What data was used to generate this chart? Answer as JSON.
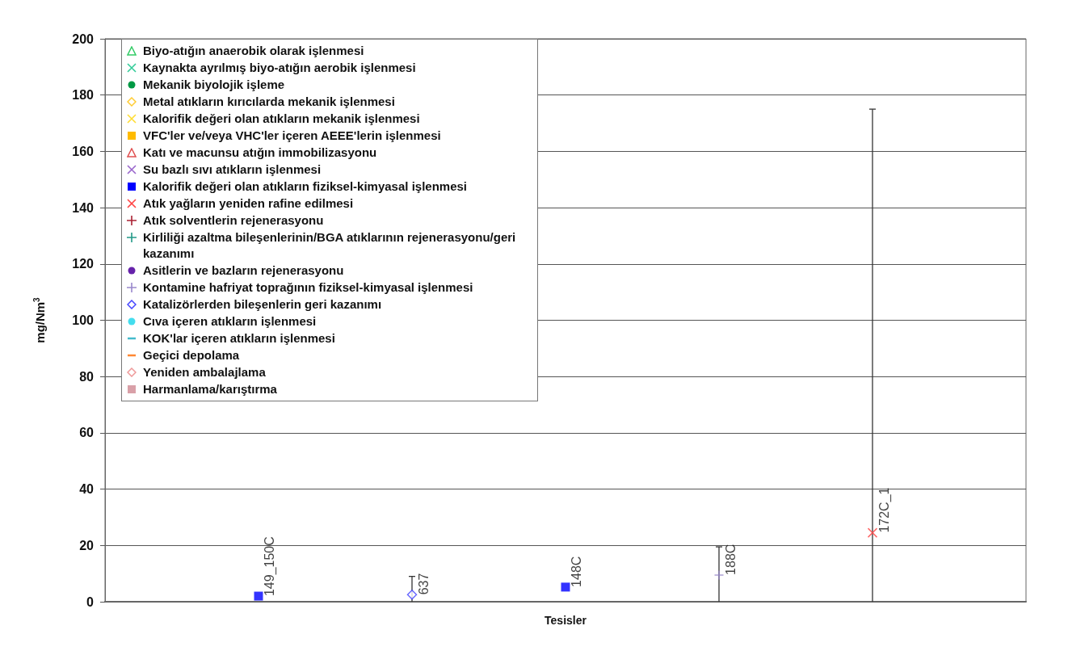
{
  "chart_data": {
    "type": "scatter",
    "xlabel": "Tesisler",
    "ylabel": "mg/Nm$^{3}$",
    "categories": [
      null,
      "149_150C",
      "637",
      "148C",
      "188C",
      "172C_1",
      null
    ],
    "ylim": [
      0,
      200
    ],
    "yticks": [
      0,
      20,
      40,
      60,
      80,
      100,
      120,
      140,
      160,
      180,
      200
    ],
    "grid": "y",
    "legend": "top left",
    "tick_labels": "y",
    "series": [
      {
        "name": "Biyo-atığın anaerobik olarak işlenmesi",
        "color": "#33cc66",
        "marker": "triangle",
        "values": [
          null,
          null,
          null,
          null,
          null,
          null,
          null
        ]
      },
      {
        "name": "Kaynakta ayrılmış biyo-atığın aerobik işlenmesi",
        "color": "#33cc99",
        "marker": "x",
        "values": [
          null,
          null,
          null,
          null,
          null,
          null,
          null
        ]
      },
      {
        "name": "Mekanik biyolojik işleme",
        "color": "#009944",
        "marker": "circle",
        "values": [
          null,
          null,
          null,
          null,
          null,
          null,
          null
        ]
      },
      {
        "name": "Metal atıkların kırıcılarda mekanik işlenmesi",
        "color": "#ffcc33",
        "marker": "diamond",
        "values": [
          null,
          null,
          null,
          null,
          null,
          null,
          null
        ]
      },
      {
        "name": "Kalorifik değeri olan atıkların mekanik işlenmesi",
        "color": "#ffdd33",
        "marker": "x",
        "values": [
          null,
          null,
          null,
          null,
          null,
          null,
          null
        ]
      },
      {
        "name": "VFC'ler ve/veya VHC'ler içeren AEEE'lerin işlenmesi",
        "color": "#ffbb00",
        "marker": "square",
        "values": [
          null,
          null,
          null,
          null,
          null,
          null,
          null
        ]
      },
      {
        "name": "Katı ve macunsu atığın immobilizasyonu",
        "color": "#e05050",
        "marker": "triangle",
        "values": [
          null,
          null,
          null,
          null,
          null,
          null,
          null
        ]
      },
      {
        "name": "Su bazlı sıvı atıkların işlenmesi",
        "color": "#9966cc",
        "marker": "x",
        "values": [
          null,
          null,
          null,
          null,
          null,
          null,
          null
        ]
      },
      {
        "name": "Kalorifik değeri olan atıkların fiziksel-kimyasal işlenmesi",
        "color": "#0000ff",
        "marker": "square",
        "values": [
          null,
          2,
          null,
          5.2,
          null,
          null,
          null
        ]
      },
      {
        "name": "Atık yağların yeniden rafine edilmesi",
        "color": "#ff4444",
        "marker": "x",
        "values": [
          null,
          null,
          null,
          null,
          null,
          24.5,
          null
        ],
        "errors": [
          null,
          null,
          null,
          null,
          null,
          [
            0,
            175
          ],
          null
        ]
      },
      {
        "name": "Atık solventlerin rejenerasyonu",
        "color": "#aa2233",
        "marker": "cross",
        "values": [
          null,
          null,
          null,
          null,
          null,
          null,
          null
        ]
      },
      {
        "name": "Kirliliği azaltma bileşenlerinin/BGA atıklarının rejenerasyonu/geri kazanımı",
        "color": "#229988",
        "marker": "cross",
        "values": [
          null,
          null,
          null,
          null,
          null,
          null,
          null
        ]
      },
      {
        "name": "Asitlerin ve bazların rejenerasyonu",
        "color": "#6622aa",
        "marker": "circle",
        "values": [
          null,
          null,
          null,
          null,
          null,
          null,
          null
        ]
      },
      {
        "name": "Kontamine hafriyat toprağının fiziksel-kimyasal işlenmesi",
        "color": "#9988cc",
        "marker": "cross",
        "values": [
          null,
          null,
          null,
          null,
          9.5,
          null,
          null
        ],
        "errors": [
          null,
          null,
          null,
          null,
          [
            0,
            19.5
          ],
          null,
          null
        ]
      },
      {
        "name": "Katalizörlerden bileşenlerin geri kazanımı",
        "color": "#4444ff",
        "marker": "diamond",
        "values": [
          null,
          null,
          2.5,
          null,
          null,
          null,
          null
        ],
        "errors": [
          null,
          null,
          [
            0,
            9
          ],
          null,
          null,
          null,
          null
        ]
      },
      {
        "name": "Cıva içeren atıkların işlenmesi",
        "color": "#44ddee",
        "marker": "circle",
        "values": [
          null,
          null,
          null,
          null,
          null,
          null,
          null
        ]
      },
      {
        "name": "KOK'lar içeren atıkların işlenmesi",
        "color": "#44bbcc",
        "marker": "dash",
        "values": [
          null,
          null,
          null,
          null,
          null,
          null,
          null
        ]
      },
      {
        "name": "Geçici depolama",
        "color": "#ff8833",
        "marker": "dash",
        "values": [
          null,
          null,
          null,
          null,
          null,
          null,
          null
        ]
      },
      {
        "name": "Yeniden ambalajlama",
        "color": "#ee9999",
        "marker": "diamond",
        "values": [
          null,
          null,
          null,
          null,
          null,
          null,
          null
        ]
      },
      {
        "name": "Harmanlama/karıştırma",
        "color": "#d9a0a8",
        "marker": "square",
        "values": [
          null,
          null,
          null,
          null,
          null,
          null,
          null
        ]
      }
    ]
  }
}
